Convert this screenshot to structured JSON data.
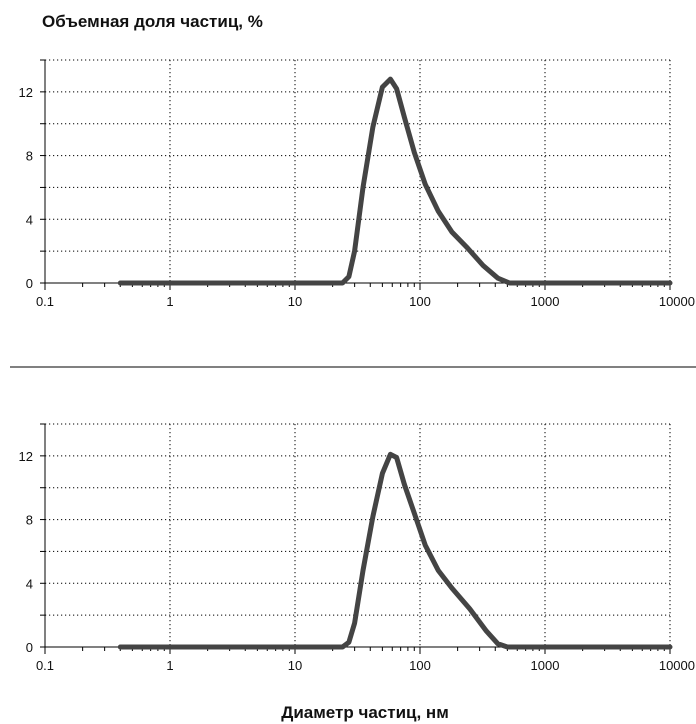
{
  "figure": {
    "ylabel": "Объемная доля частиц, %",
    "xlabel": "Диаметр частиц, нм"
  },
  "chart_data": [
    {
      "type": "line",
      "x_scale": "log",
      "xlim": [
        0.1,
        10000
      ],
      "ylim": [
        0,
        14
      ],
      "x_ticks": [
        0.1,
        1,
        10,
        100,
        1000,
        10000
      ],
      "x_tick_labels": [
        "0.1",
        "1",
        "10",
        "100",
        "1000",
        "10000"
      ],
      "y_ticks": [
        0,
        4,
        8,
        12
      ],
      "y_tick_labels": [
        "0",
        "4",
        "8",
        "12"
      ],
      "grid": true,
      "series": [
        {
          "color": "#444444",
          "x": [
            0.4,
            10,
            24,
            27,
            30,
            35,
            42,
            50,
            58,
            65,
            75,
            90,
            110,
            140,
            180,
            240,
            320,
            420,
            520,
            1000,
            10000
          ],
          "y": [
            0,
            0,
            0,
            0.4,
            2,
            6,
            9.8,
            12.3,
            12.8,
            12.2,
            10.4,
            8.2,
            6.2,
            4.5,
            3.2,
            2.2,
            1.1,
            0.3,
            0,
            0,
            0
          ]
        }
      ]
    },
    {
      "type": "line",
      "x_scale": "log",
      "xlim": [
        0.1,
        10000
      ],
      "ylim": [
        0,
        14
      ],
      "x_ticks": [
        0.1,
        1,
        10,
        100,
        1000,
        10000
      ],
      "x_tick_labels": [
        "0.1",
        "1",
        "10",
        "100",
        "1000",
        "10000"
      ],
      "y_ticks": [
        0,
        4,
        8,
        12
      ],
      "y_tick_labels": [
        "0",
        "4",
        "8",
        "12"
      ],
      "grid": true,
      "series": [
        {
          "color": "#444444",
          "x": [
            0.4,
            10,
            24,
            27,
            30,
            35,
            42,
            50,
            58,
            65,
            75,
            90,
            110,
            140,
            180,
            250,
            340,
            420,
            500,
            1000,
            10000
          ],
          "y": [
            0,
            0,
            0,
            0.3,
            1.5,
            4.8,
            8.2,
            10.9,
            12.1,
            11.9,
            10.2,
            8.4,
            6.4,
            4.8,
            3.7,
            2.4,
            1.0,
            0.2,
            0,
            0,
            0
          ]
        }
      ]
    }
  ]
}
